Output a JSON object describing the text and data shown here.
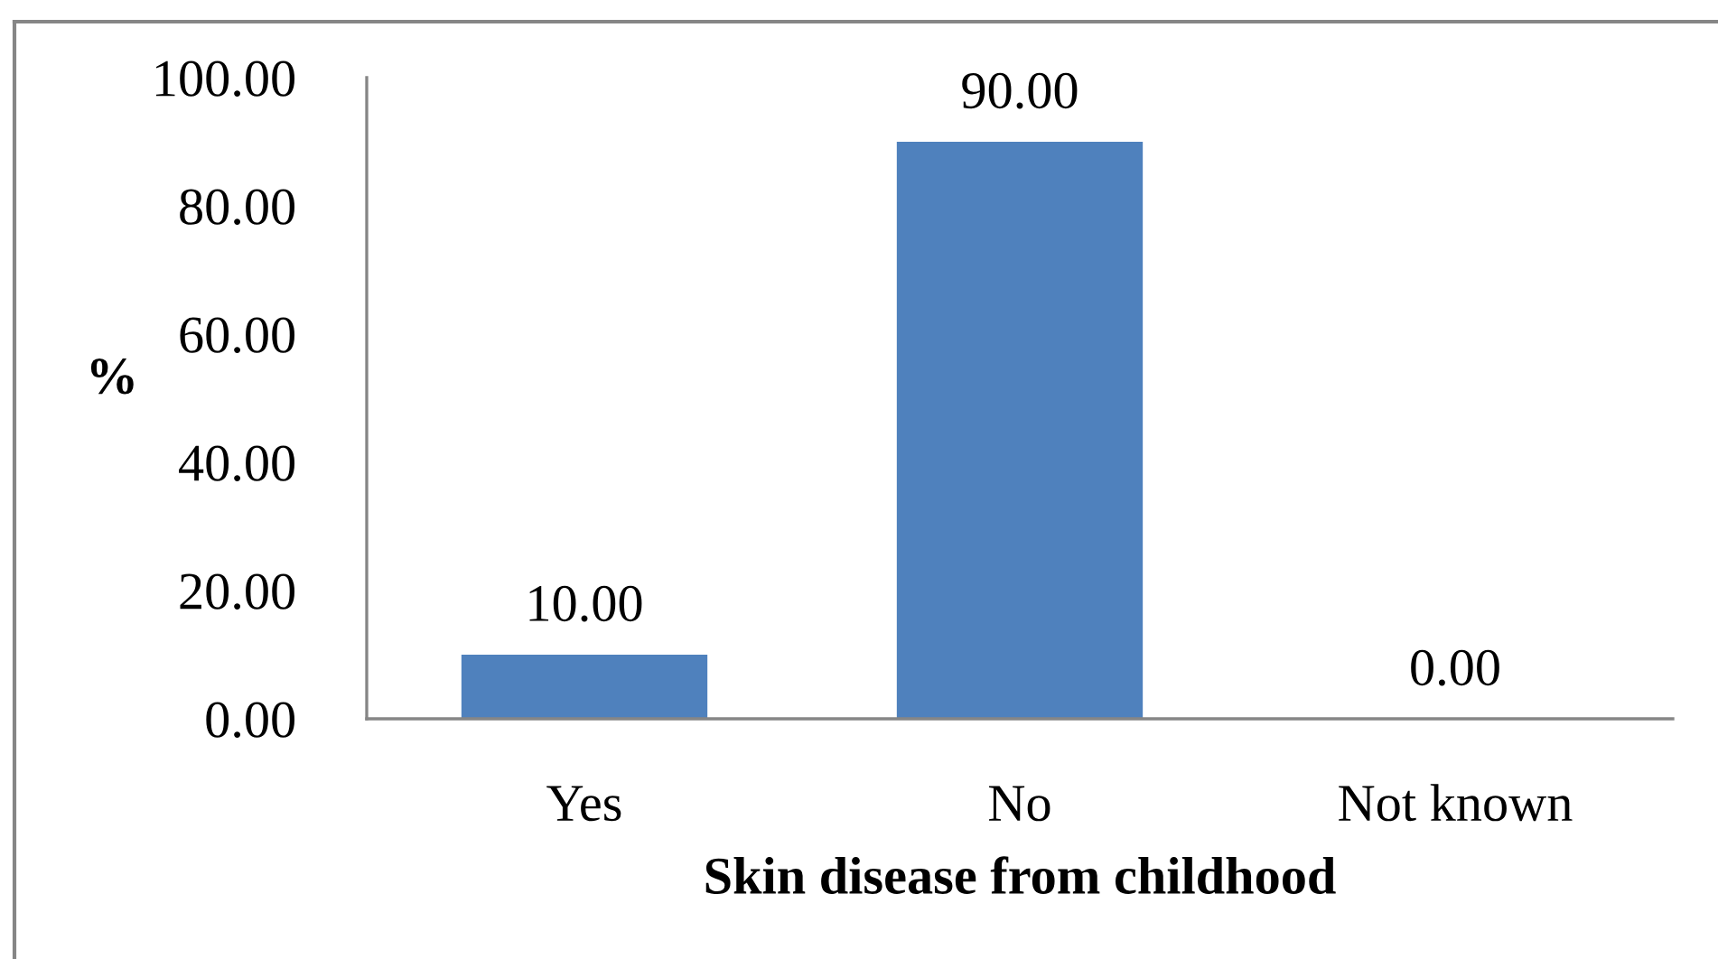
{
  "chart_data": {
    "type": "bar",
    "categories": [
      "Yes",
      "No",
      "Not known"
    ],
    "values": [
      10,
      90,
      0
    ],
    "value_labels": [
      "10.00",
      "90.00",
      "0.00"
    ],
    "color": "#4f81bd",
    "xlabel": "Skin disease from childhood",
    "ylabel": "%",
    "ylim": [
      0,
      100
    ],
    "yticks": [
      {
        "value": 0,
        "label": "0.00"
      },
      {
        "value": 20,
        "label": "20.00"
      },
      {
        "value": 40,
        "label": "40.00"
      },
      {
        "value": 60,
        "label": "60.00"
      },
      {
        "value": 80,
        "label": "80.00"
      },
      {
        "value": 100,
        "label": "100.00"
      }
    ],
    "grid": false
  }
}
